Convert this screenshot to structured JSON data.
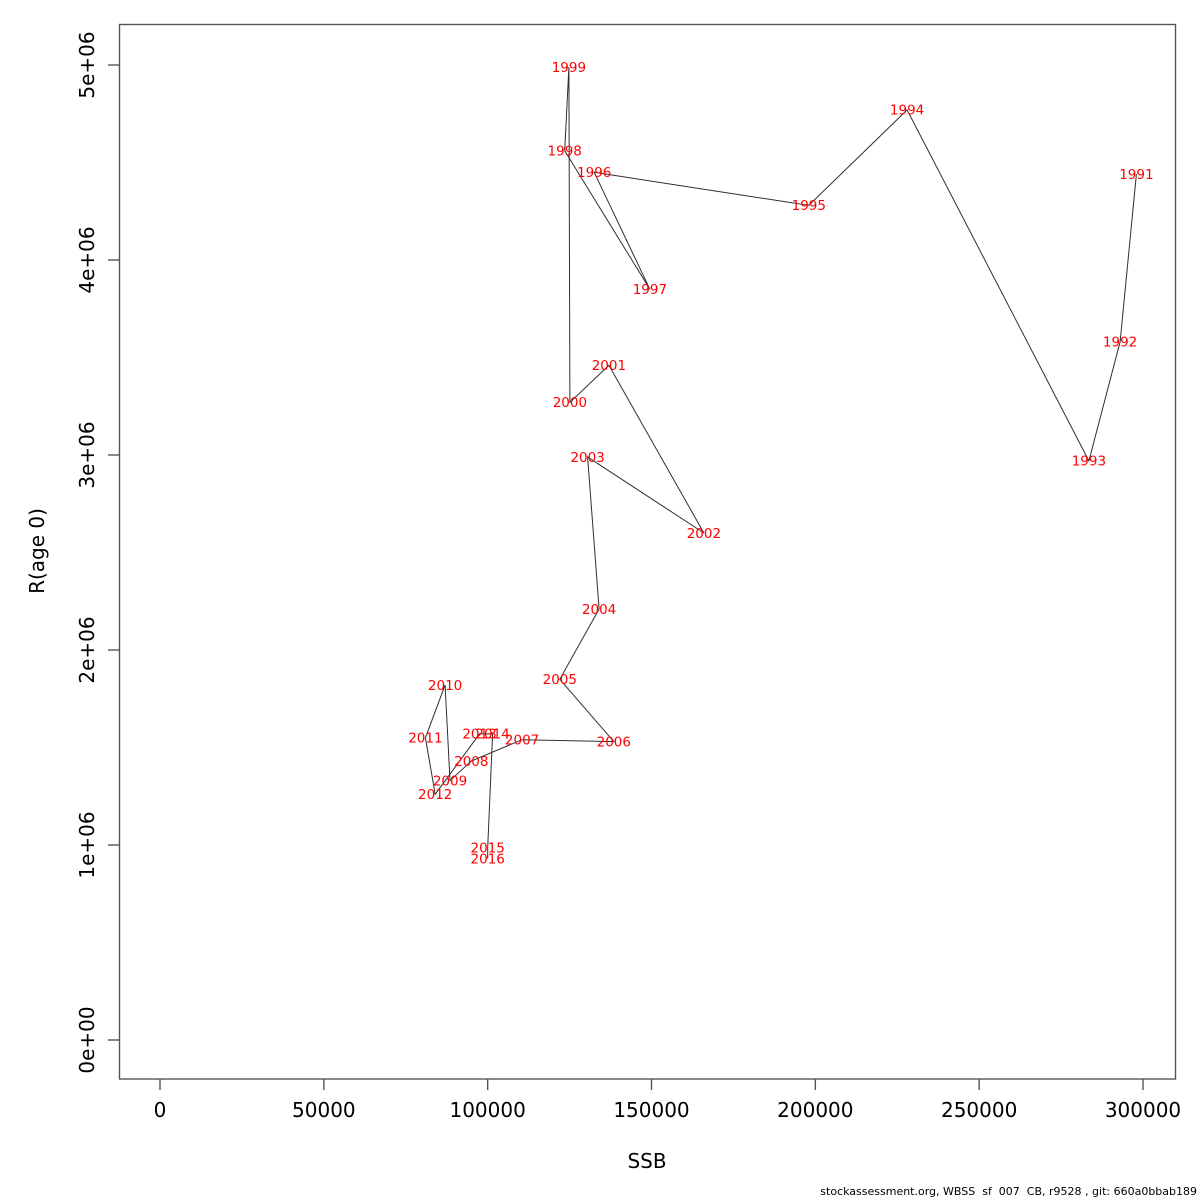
{
  "chart": {
    "xlabel": "SSB",
    "ylabel": "R(age 0)"
  },
  "footer": {
    "text": "stockassessment.org, WBSS  sf  007  CB, r9528 , git: 660a0bbab189"
  },
  "chart_data": {
    "type": "scatter",
    "subtype": "labeled-trajectory-stock-recruitment-plot",
    "title": "",
    "xlabel": "SSB",
    "ylabel": "R(age 0)",
    "xlim": [
      0,
      300000
    ],
    "ylim": [
      0,
      5000000
    ],
    "grid": false,
    "legend": false,
    "x_ticks": {
      "values": [
        0,
        50000,
        100000,
        150000,
        200000,
        250000,
        300000
      ],
      "labels": [
        "0",
        "50000",
        "100000",
        "150000",
        "200000",
        "250000",
        "300000"
      ]
    },
    "y_ticks": {
      "values": [
        0,
        1000000,
        2000000,
        3000000,
        4000000,
        5000000
      ],
      "labels": [
        "0e+00",
        "1e+06",
        "2e+06",
        "3e+06",
        "4e+06",
        "5e+06"
      ]
    },
    "label_color": "#ff0000",
    "line_color": "#2e2e2e",
    "connect": "chronological",
    "points": [
      {
        "year": "1991",
        "ssb": 298000,
        "r": 4440000
      },
      {
        "year": "1992",
        "ssb": 293000,
        "r": 3580000
      },
      {
        "year": "1993",
        "ssb": 283500,
        "r": 2970000
      },
      {
        "year": "1994",
        "ssb": 228000,
        "r": 4770000
      },
      {
        "year": "1995",
        "ssb": 198000,
        "r": 4280000
      },
      {
        "year": "1996",
        "ssb": 132500,
        "r": 4450000
      },
      {
        "year": "1997",
        "ssb": 149500,
        "r": 3850000
      },
      {
        "year": "1998",
        "ssb": 123500,
        "r": 4560000
      },
      {
        "year": "1999",
        "ssb": 124800,
        "r": 4990000
      },
      {
        "year": "2000",
        "ssb": 125100,
        "r": 3270000
      },
      {
        "year": "2001",
        "ssb": 137000,
        "r": 3460000
      },
      {
        "year": "2002",
        "ssb": 166000,
        "r": 2600000
      },
      {
        "year": "2003",
        "ssb": 130500,
        "r": 2990000
      },
      {
        "year": "2004",
        "ssb": 134000,
        "r": 2210000
      },
      {
        "year": "2005",
        "ssb": 122000,
        "r": 1850000
      },
      {
        "year": "2006",
        "ssb": 138500,
        "r": 1530000
      },
      {
        "year": "2007",
        "ssb": 110500,
        "r": 1540000
      },
      {
        "year": "2008",
        "ssb": 95000,
        "r": 1430000
      },
      {
        "year": "2009",
        "ssb": 88500,
        "r": 1330000
      },
      {
        "year": "2010",
        "ssb": 87000,
        "r": 1820000
      },
      {
        "year": "2011",
        "ssb": 81000,
        "r": 1550000
      },
      {
        "year": "2012",
        "ssb": 84000,
        "r": 1260000
      },
      {
        "year": "2013",
        "ssb": 97500,
        "r": 1570000
      },
      {
        "year": "2014",
        "ssb": 101500,
        "r": 1570000
      },
      {
        "year": "2015",
        "ssb": 100000,
        "r": 985000
      },
      {
        "year": "2016",
        "ssb": 100000,
        "r": 930000
      }
    ]
  }
}
